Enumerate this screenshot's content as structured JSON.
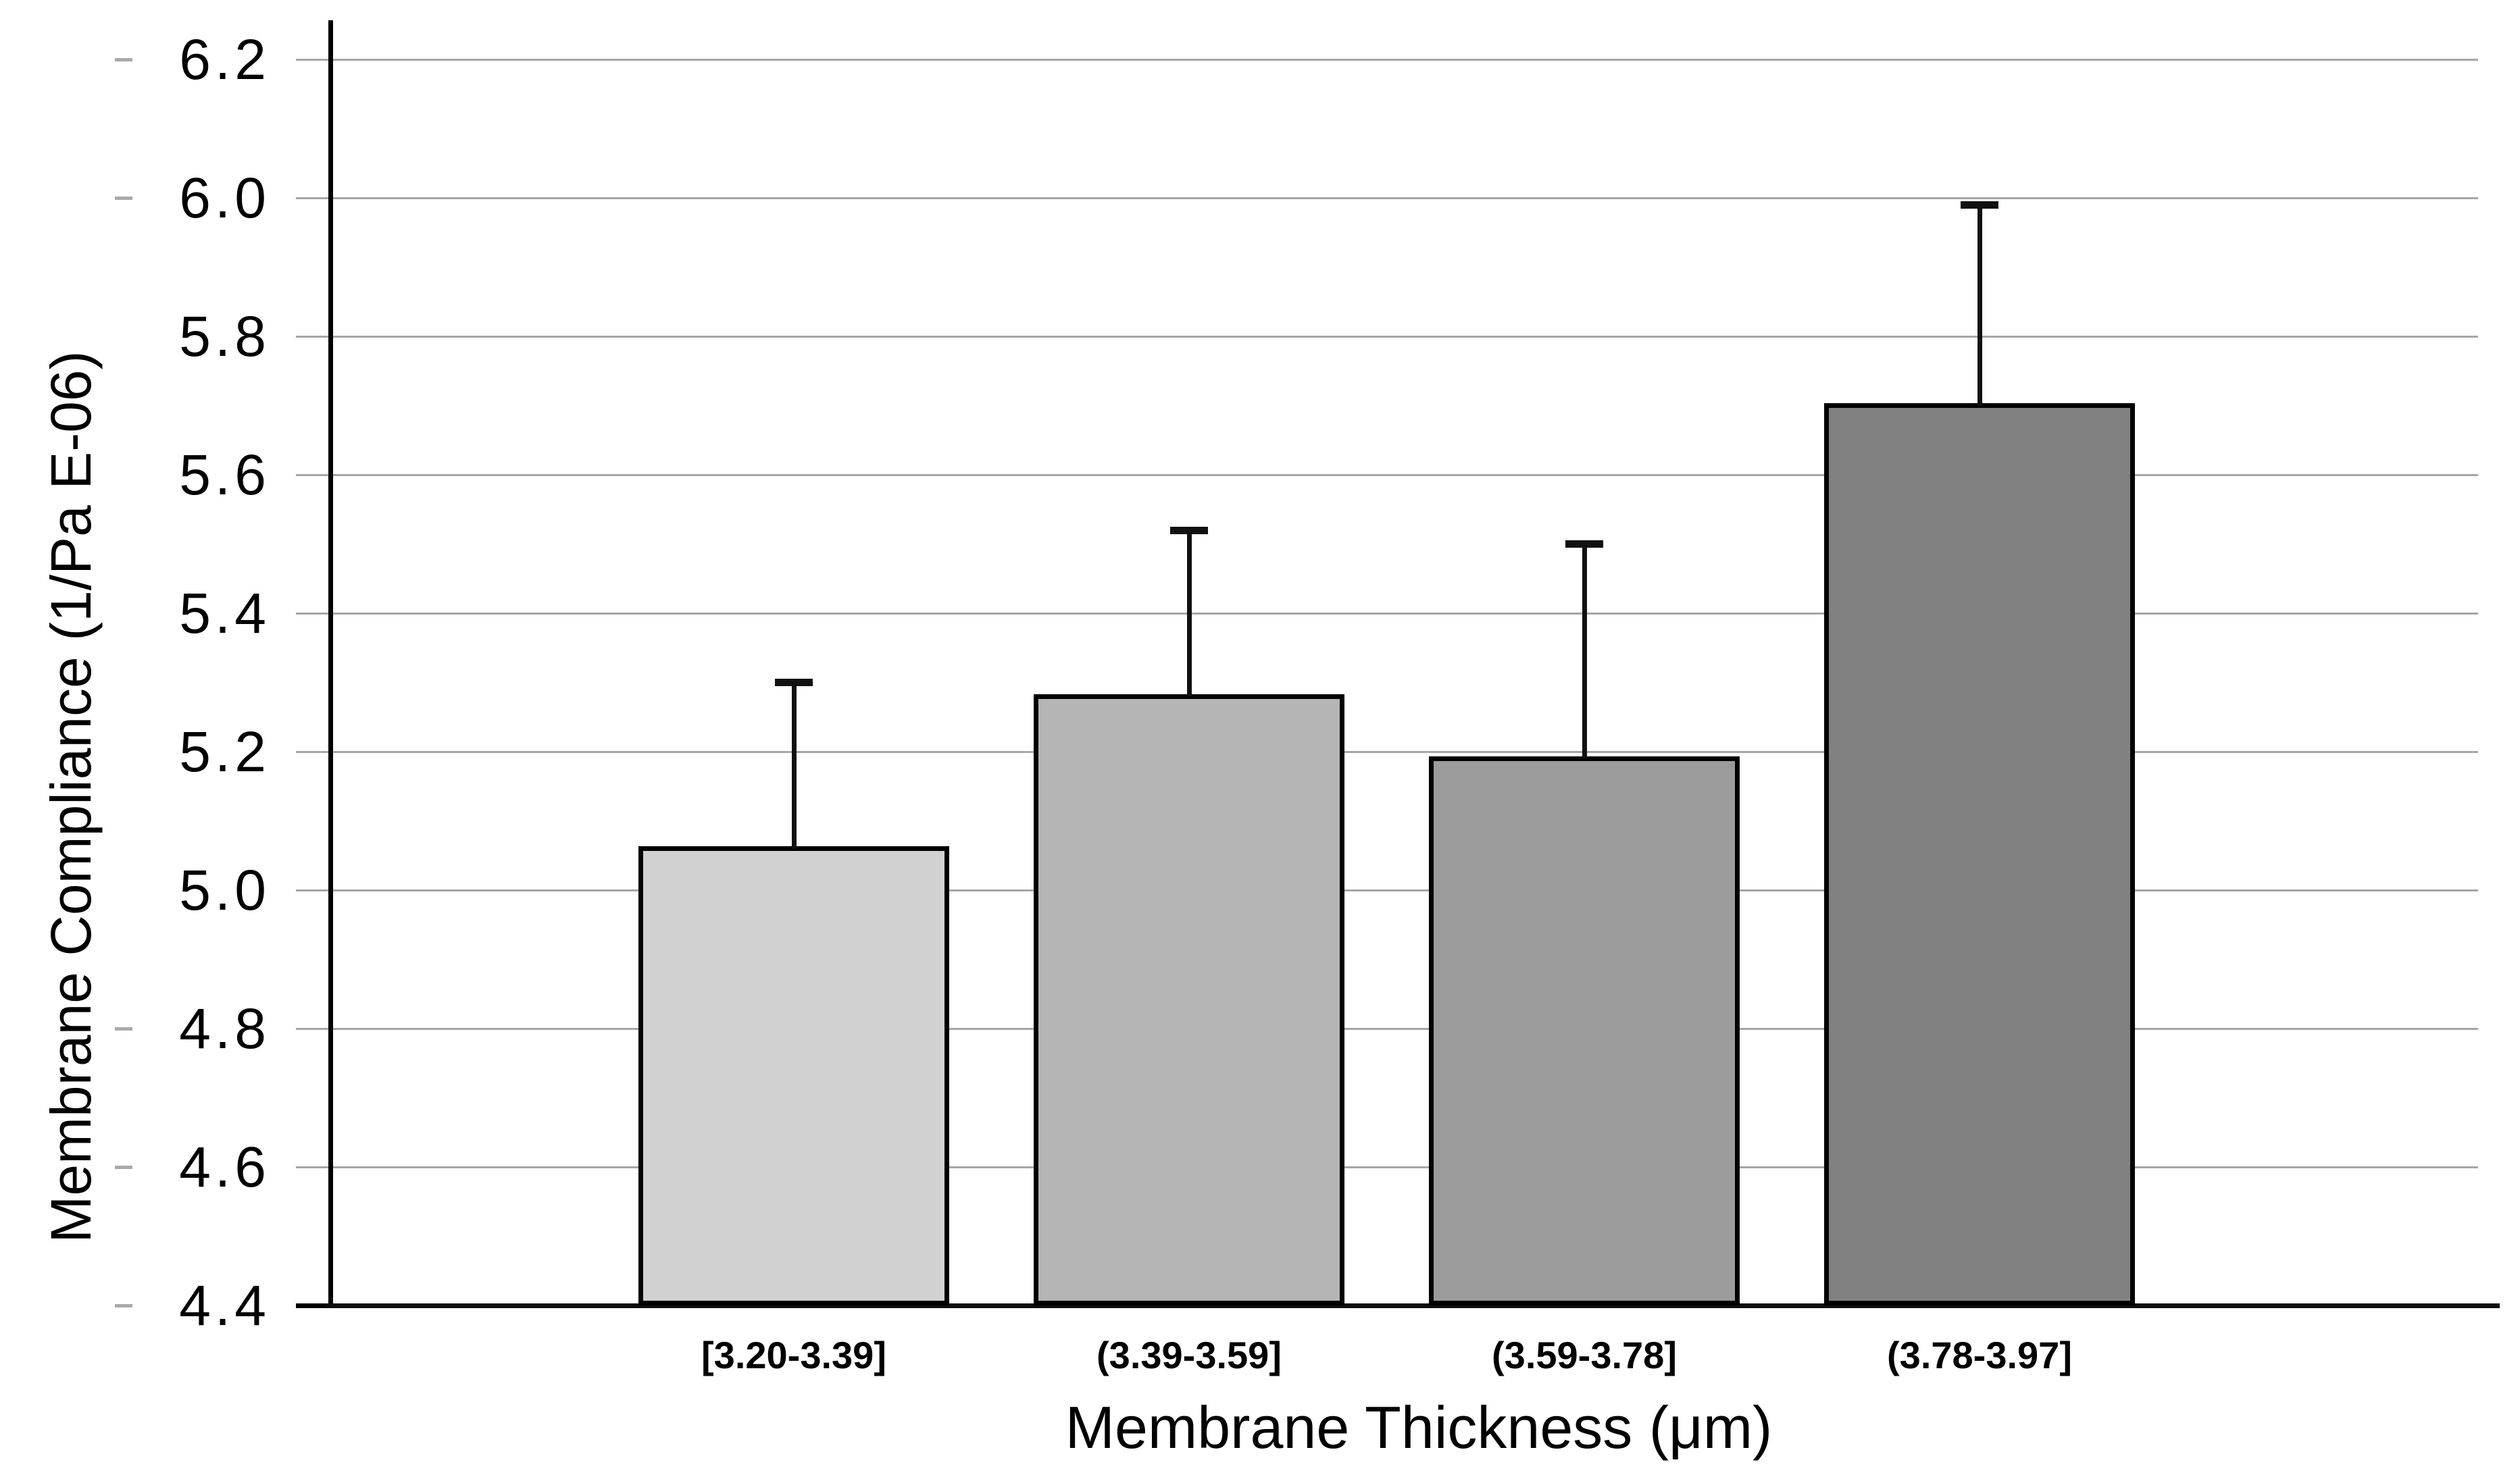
{
  "chart_data": {
    "type": "bar",
    "title": "",
    "categories": [
      "[3.20-3.39]",
      "(3.39-3.59]",
      "(3.59-3.78]",
      "(3.78-3.97]"
    ],
    "values": [
      5.06,
      5.28,
      5.19,
      5.7
    ],
    "errors_upper": [
      0.24,
      0.24,
      0.31,
      0.29
    ],
    "bar_colors": [
      "#d1d1d1",
      "#b5b5b5",
      "#9b9b9b",
      "#818181"
    ],
    "bar_border_color": "#000000",
    "error_bar_color": "#111111",
    "xlabel": "Membrane Thickness (μm)",
    "ylabel": "Membrane Compliance (1/Pa E-06)",
    "ylim": [
      4.4,
      6.2
    ],
    "ytick_step": 0.2,
    "yticks": [
      "4.4",
      "4.6",
      "4.8",
      "5.0",
      "5.2",
      "5.4",
      "5.6",
      "5.8",
      "6.0",
      "6.2"
    ],
    "grid": "horizontal",
    "gridline_color": "#a6a6a6",
    "axis_color": "#000000",
    "background": "#ffffff",
    "legend": "none"
  }
}
